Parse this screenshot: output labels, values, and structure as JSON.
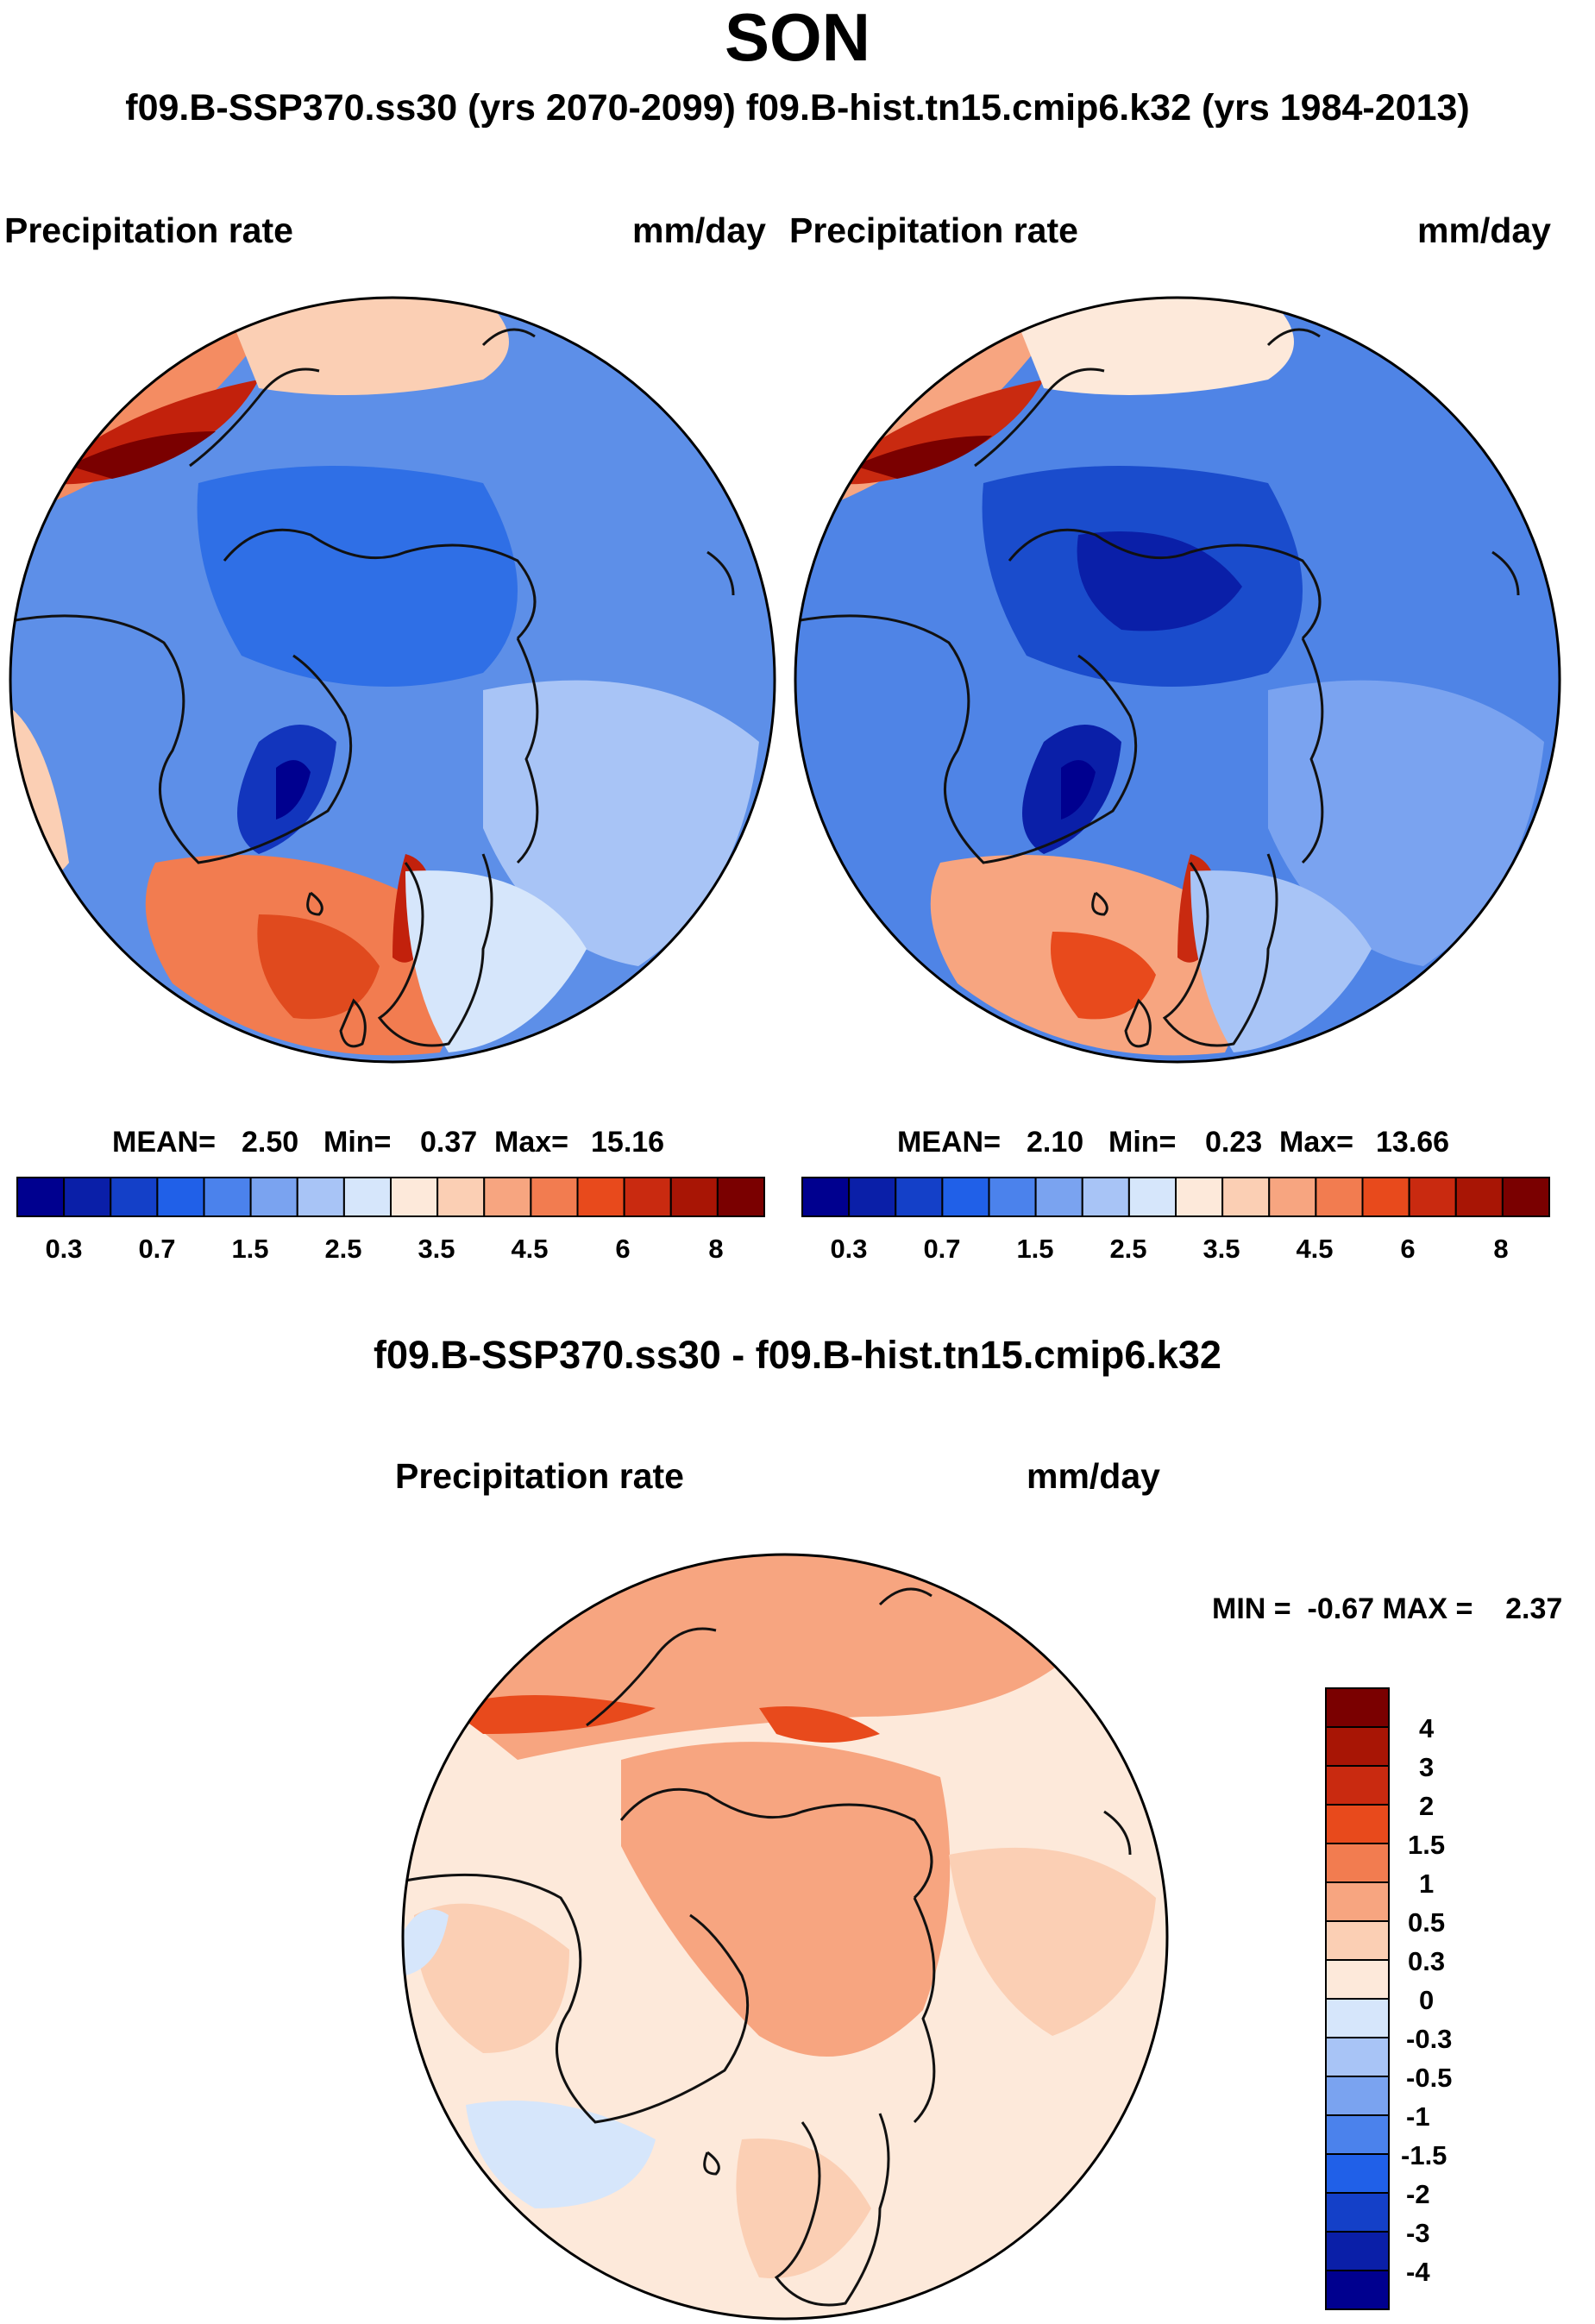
{
  "title": "SON",
  "subtitle": "f09.B-SSP370.ss30 (yrs 2070-2099)  f09.B-hist.tn15.cmip6.k32 (yrs 1984-2013)",
  "panels": [
    {
      "left_label": "Precipitation rate",
      "right_label": "mm/day",
      "stats": {
        "mean_label": "MEAN=",
        "mean": "2.50",
        "min_label": "Min=",
        "min": "0.37",
        "max_label": "Max=",
        "max": "15.16"
      }
    },
    {
      "left_label": "Precipitation rate",
      "right_label": "mm/day",
      "stats": {
        "mean_label": "MEAN=",
        "mean": "2.10",
        "min_label": "Min=",
        "min": "0.23",
        "max_label": "Max=",
        "max": "13.66"
      }
    }
  ],
  "abs_colorbar": {
    "colors": [
      "#00008f",
      "#0a1fa8",
      "#1440c8",
      "#2060e8",
      "#4b82ec",
      "#7aa3f0",
      "#a8c4f6",
      "#d6e6fb",
      "#fde9da",
      "#fbcfb4",
      "#f7a580",
      "#f27c50",
      "#e84a1c",
      "#c92a10",
      "#a81505",
      "#7a0000"
    ],
    "tick_labels": [
      "0.3",
      "0.7",
      "1.5",
      "2.5",
      "3.5",
      "4.5",
      "6",
      "8"
    ]
  },
  "difference": {
    "title": "f09.B-SSP370.ss30 - f09.B-hist.tn15.cmip6.k32",
    "left_label": "Precipitation rate",
    "right_label": "mm/day",
    "minmax_text": "MIN =  -0.67 MAX =    2.37",
    "colorbar": {
      "colors_bottom_to_top": [
        "#00008f",
        "#0a1fa8",
        "#1440c8",
        "#2060e8",
        "#4b82ec",
        "#7aa3f0",
        "#a8c4f6",
        "#d6e6fb",
        "#fde9da",
        "#fbcfb4",
        "#f7a580",
        "#f27c50",
        "#e84a1c",
        "#c92a10",
        "#a81505",
        "#7a0000"
      ],
      "tick_labels_top_to_bottom": [
        "4",
        "3",
        "2",
        "1.5",
        "1",
        "0.5",
        "0.3",
        "0",
        "-0.3",
        "-0.5",
        "-1",
        "-1.5",
        "-2",
        "-3",
        "-4"
      ]
    }
  },
  "chart_data": [
    {
      "type": "heatmap",
      "title": "Precipitation rate",
      "units": "mm/day",
      "projection": "north polar stereographic",
      "period": "f09.B-SSP370.ss30 (yrs 2070-2099)",
      "mean": 2.5,
      "min": 0.37,
      "max": 15.16,
      "contour_levels": [
        0.3,
        0.5,
        0.7,
        1,
        1.5,
        2,
        2.5,
        3,
        3.5,
        4,
        4.5,
        5,
        6,
        7,
        8
      ]
    },
    {
      "type": "heatmap",
      "title": "Precipitation rate",
      "units": "mm/day",
      "projection": "north polar stereographic",
      "period": "f09.B-hist.tn15.cmip6.k32 (yrs 1984-2013)",
      "mean": 2.1,
      "min": 0.23,
      "max": 13.66,
      "contour_levels": [
        0.3,
        0.5,
        0.7,
        1,
        1.5,
        2,
        2.5,
        3,
        3.5,
        4,
        4.5,
        5,
        6,
        7,
        8
      ]
    },
    {
      "type": "heatmap",
      "title": "Precipitation rate",
      "units": "mm/day",
      "projection": "north polar stereographic",
      "period": "f09.B-SSP370.ss30 - f09.B-hist.tn15.cmip6.k32",
      "min": -0.67,
      "max": 2.37,
      "contour_levels": [
        -4,
        -3,
        -2,
        -1.5,
        -1,
        -0.5,
        -0.3,
        0,
        0.3,
        0.5,
        1,
        1.5,
        2,
        3,
        4
      ]
    }
  ]
}
